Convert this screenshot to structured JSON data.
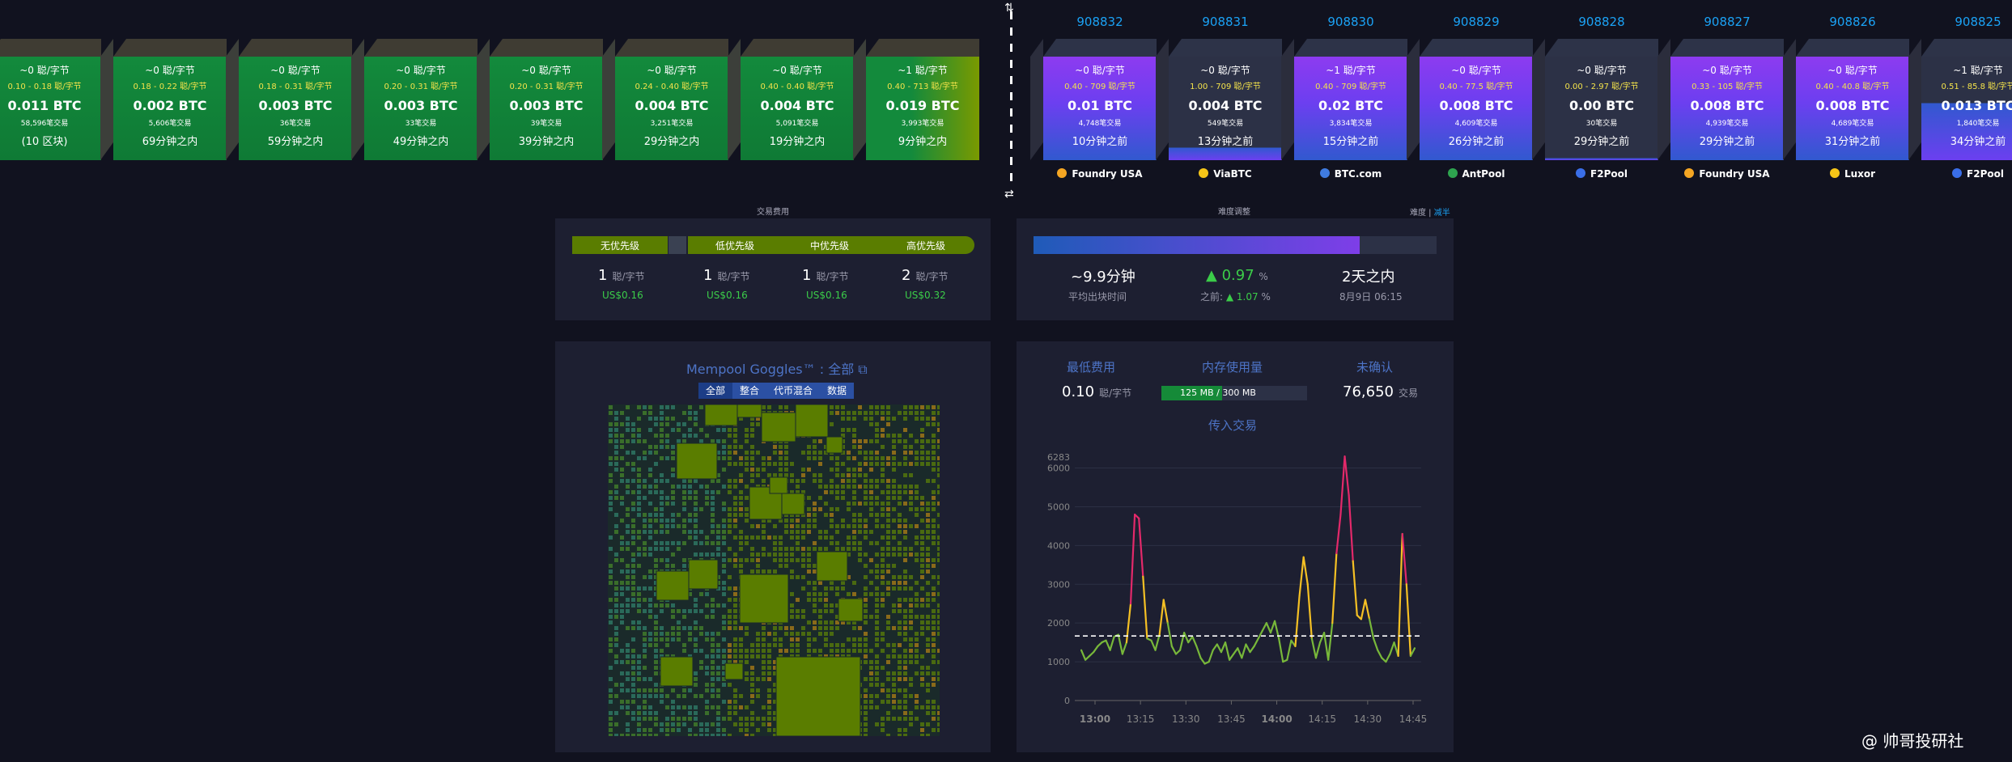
{
  "projected_blocks": [
    {
      "fee": "~0 聪/字节",
      "range": "0.10 - 0.18 聪/字节",
      "size": "0.011 BTC",
      "tx": "58,596笔交易",
      "time": "(10 区块)"
    },
    {
      "fee": "~0 聪/字节",
      "range": "0.18 - 0.22 聪/字节",
      "size": "0.002 BTC",
      "tx": "5,606笔交易",
      "time": "69分钟之内"
    },
    {
      "fee": "~0 聪/字节",
      "range": "0.18 - 0.31 聪/字节",
      "size": "0.003 BTC",
      "tx": "36笔交易",
      "time": "59分钟之内"
    },
    {
      "fee": "~0 聪/字节",
      "range": "0.20 - 0.31 聪/字节",
      "size": "0.003 BTC",
      "tx": "33笔交易",
      "time": "49分钟之内"
    },
    {
      "fee": "~0 聪/字节",
      "range": "0.20 - 0.31 聪/字节",
      "size": "0.003 BTC",
      "tx": "39笔交易",
      "time": "39分钟之内"
    },
    {
      "fee": "~0 聪/字节",
      "range": "0.24 - 0.40 聪/字节",
      "size": "0.004 BTC",
      "tx": "3,251笔交易",
      "time": "29分钟之内"
    },
    {
      "fee": "~0 聪/字节",
      "range": "0.40 - 0.40 聪/字节",
      "size": "0.004 BTC",
      "tx": "5,091笔交易",
      "time": "19分钟之内"
    },
    {
      "fee": "~1 聪/字节",
      "range": "0.40 - 713 聪/字节",
      "size": "0.019 BTC",
      "tx": "3,993笔交易",
      "time": "9分钟之内"
    }
  ],
  "mined_blocks": [
    {
      "height": "908832",
      "fee": "~0 聪/字节",
      "range": "0.40 - 709 聪/字节",
      "size": "0.01 BTC",
      "tx": "4,748笔交易",
      "time": "10分钟之前",
      "pool": "Foundry USA",
      "pool_color": "#f5a623",
      "fill": 1.0
    },
    {
      "height": "908831",
      "fee": "~0 聪/字节",
      "range": "1.00 - 709 聪/字节",
      "size": "0.004 BTC",
      "tx": "549笔交易",
      "time": "13分钟之前",
      "pool": "ViaBTC",
      "pool_color": "#f5c518",
      "fill": 0.12
    },
    {
      "height": "908830",
      "fee": "~1 聪/字节",
      "range": "0.40 - 709 聪/字节",
      "size": "0.02 BTC",
      "tx": "3,834笔交易",
      "time": "15分钟之前",
      "pool": "BTC.com",
      "pool_color": "#3f7be0",
      "fill": 1.0
    },
    {
      "height": "908829",
      "fee": "~0 聪/字节",
      "range": "0.40 - 77.5 聪/字节",
      "size": "0.008 BTC",
      "tx": "4,609笔交易",
      "time": "26分钟之前",
      "pool": "AntPool",
      "pool_color": "#2ea44f",
      "fill": 1.0
    },
    {
      "height": "908828",
      "fee": "~0 聪/字节",
      "range": "0.00 - 2.97 聪/字节",
      "size": "0.00 BTC",
      "tx": "30笔交易",
      "time": "29分钟之前",
      "pool": "F2Pool",
      "pool_color": "#3a6ee8",
      "fill": 0.02
    },
    {
      "height": "908827",
      "fee": "~0 聪/字节",
      "range": "0.33 - 105 聪/字节",
      "size": "0.008 BTC",
      "tx": "4,939笔交易",
      "time": "29分钟之前",
      "pool": "Foundry USA",
      "pool_color": "#f5a623",
      "fill": 1.0
    },
    {
      "height": "908826",
      "fee": "~0 聪/字节",
      "range": "0.40 - 40.8 聪/字节",
      "size": "0.008 BTC",
      "tx": "4,689笔交易",
      "time": "31分钟之前",
      "pool": "Luxor",
      "pool_color": "#f5c518",
      "fill": 1.0
    },
    {
      "height": "908825",
      "fee": "~1 聪/字节",
      "range": "0.51 - 85.8 聪/字节",
      "size": "0.013 BTC",
      "tx": "1,840笔交易",
      "time": "34分钟之前",
      "pool": "F2Pool",
      "pool_color": "#3a6ee8",
      "fill": 0.55
    }
  ],
  "fees": {
    "title": "交易费用",
    "labels": [
      "无优先级",
      "低优先级",
      "中优先级",
      "高优先级"
    ],
    "values": [
      "1",
      "1",
      "1",
      "2"
    ],
    "unit": "聪/字节",
    "usd": [
      "US$0.16",
      "US$0.16",
      "US$0.16",
      "US$0.32"
    ]
  },
  "difficulty": {
    "title": "难度调整",
    "toggle_prefix": "难度",
    "toggle_link": "减半",
    "progress": 0.81,
    "avg_time": "~9.9分钟",
    "avg_label": "平均出块时间",
    "change": "0.97",
    "change_unit": "%",
    "prev_label": "之前:",
    "prev_change": "1.07",
    "eta": "2天之内",
    "eta_date": "8月9日 06:15"
  },
  "goggles": {
    "title": "Mempool Goggles™ : 全部",
    "tabs": [
      "全部",
      "整合",
      "代币混合",
      "数据"
    ]
  },
  "mempool_info": {
    "min_fee_label": "最低费用",
    "min_fee_value": "0.10",
    "min_fee_unit": "聪/字节",
    "memory_label": "内存使用量",
    "memory_text": "125 MB / 300 MB",
    "memory_fraction": 0.4167,
    "unconfirmed_label": "未确认",
    "unconfirmed_value": "76,650",
    "unconfirmed_unit": "交易",
    "incoming_label": "传入交易"
  },
  "watermark": "@ 帅哥投研社",
  "chart_data": {
    "type": "line",
    "title": "传入交易",
    "xlabel": "",
    "ylabel": "",
    "x_ticks": [
      "13:00",
      "13:15",
      "13:30",
      "13:45",
      "14:00",
      "14:15",
      "14:30",
      "14:45"
    ],
    "y_ticks": [
      0,
      1000,
      2000,
      3000,
      4000,
      5000,
      6000
    ],
    "y_max_label": "6283",
    "ylim": [
      0,
      6283
    ],
    "threshold": 1667,
    "series": [
      {
        "values": [
          1300,
          1050,
          1150,
          1250,
          1400,
          1500,
          1550,
          1300,
          1650,
          1700,
          1200,
          1500,
          2500,
          4800,
          4700,
          3200,
          1600,
          1550,
          1300,
          1700,
          2600,
          2000,
          1400,
          1200,
          1300,
          1750,
          1500,
          1650,
          1400,
          1100,
          950,
          1000,
          1300,
          1450,
          1250,
          1500,
          1050,
          1200,
          1350,
          1100,
          1450,
          1250,
          1400,
          1600,
          1800,
          2000,
          1750,
          2050,
          1600,
          1000,
          1050,
          1550,
          1400,
          2700,
          3700,
          3000,
          1600,
          1100,
          1500,
          1750,
          1050,
          2000,
          3800,
          4800,
          6300,
          5300,
          3600,
          2200,
          2100,
          2600,
          2100,
          1600,
          1300,
          1100,
          1000,
          1200,
          1500,
          1150,
          4300,
          3000,
          1150,
          1350
        ]
      }
    ]
  }
}
